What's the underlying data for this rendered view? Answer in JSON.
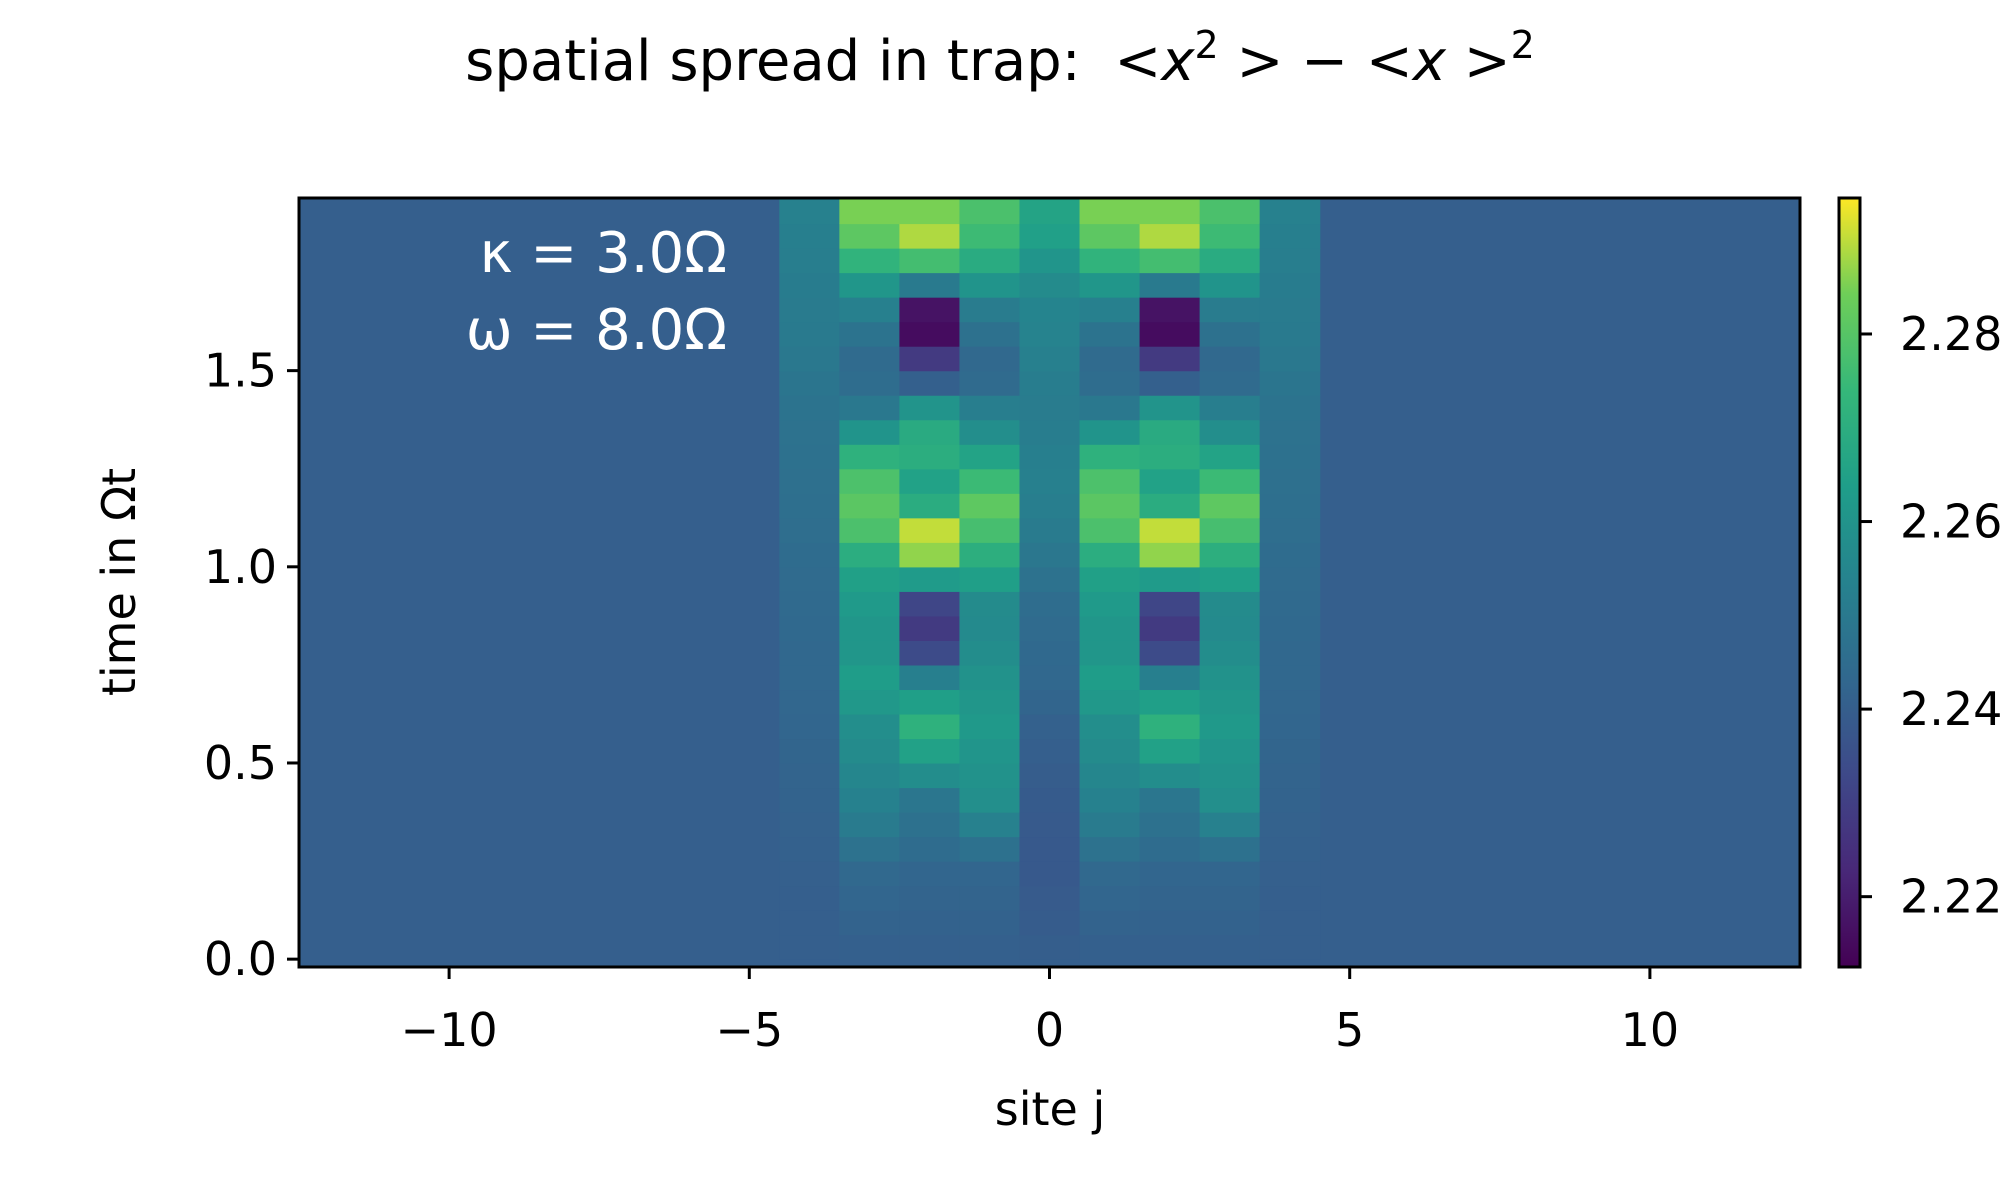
{
  "chart_data": {
    "type": "heatmap",
    "title": {
      "prefix": "spatial spread in trap:",
      "math": "<x^2> - <x>^2"
    },
    "xlabel": "site j",
    "ylabel": "time in Ωt",
    "xlim": [
      -12.5,
      12.5
    ],
    "ylim": [
      -0.02,
      1.94
    ],
    "xticks": [
      -10,
      -5,
      0,
      5,
      10
    ],
    "xtick_labels": [
      "−10",
      "−5",
      "0",
      "5",
      "10"
    ],
    "yticks": [
      0.0,
      0.5,
      1.0,
      1.5
    ],
    "ytick_labels": [
      "0.0",
      "0.5",
      "1.0",
      "1.5"
    ],
    "colorbar": {
      "colormap": "viridis",
      "range": [
        2.2125,
        2.2945
      ],
      "ticks": [
        2.22,
        2.24,
        2.26,
        2.28
      ],
      "tick_labels": [
        "2.22",
        "2.24",
        "2.26",
        "2.28"
      ]
    },
    "annotations": [
      "κ = 3.0Ω",
      "ω = 8.0Ω"
    ],
    "baseline_value": 2.2403,
    "sites": [
      -4,
      -3,
      -2,
      -1,
      0,
      1,
      2,
      3,
      4
    ],
    "time_step": 0.0625,
    "time_knots": [
      0.0,
      0.25,
      0.3,
      0.4,
      0.5,
      0.6,
      0.7,
      0.8,
      0.9,
      1.0,
      1.05,
      1.1,
      1.15,
      1.25,
      1.3,
      1.4,
      1.45,
      1.5,
      1.55,
      1.6,
      1.65,
      1.7,
      1.75,
      1.8,
      1.85,
      1.9
    ],
    "site_knots": [
      {
        "site": -4,
        "values": [
          2.2403,
          2.2405,
          2.241,
          2.2415,
          2.242,
          2.2425,
          2.243,
          2.2435,
          2.244,
          2.2445,
          2.245,
          2.2455,
          2.246,
          2.2465,
          2.247,
          2.2475,
          2.248,
          2.249,
          2.25,
          2.2505,
          2.2505,
          2.251,
          2.2515,
          2.252,
          2.2525,
          2.253
        ]
      },
      {
        "site": -3,
        "values": [
          2.2403,
          2.244,
          2.249,
          2.253,
          2.256,
          2.258,
          2.264,
          2.26,
          2.262,
          2.266,
          2.272,
          2.279,
          2.281,
          2.277,
          2.268,
          2.25,
          2.246,
          2.244,
          2.245,
          2.248,
          2.252,
          2.258,
          2.266,
          2.276,
          2.282,
          2.285
        ]
      },
      {
        "site": -2,
        "values": [
          2.2403,
          2.243,
          2.246,
          2.248,
          2.262,
          2.272,
          2.258,
          2.228,
          2.229,
          2.278,
          2.292,
          2.29,
          2.27,
          2.263,
          2.274,
          2.262,
          2.246,
          2.232,
          2.226,
          2.214,
          2.213,
          2.246,
          2.258,
          2.288,
          2.289,
          2.285
        ]
      },
      {
        "site": -1,
        "values": [
          2.2403,
          2.243,
          2.249,
          2.258,
          2.26,
          2.262,
          2.26,
          2.257,
          2.256,
          2.268,
          2.272,
          2.278,
          2.282,
          2.272,
          2.262,
          2.253,
          2.245,
          2.243,
          2.244,
          2.247,
          2.25,
          2.258,
          2.264,
          2.272,
          2.276,
          2.278
        ]
      },
      {
        "site": 0,
        "values": [
          2.2403,
          2.238,
          2.2385,
          2.239,
          2.24,
          2.241,
          2.243,
          2.244,
          2.245,
          2.248,
          2.25,
          2.251,
          2.252,
          2.253,
          2.252,
          2.251,
          2.251,
          2.252,
          2.253,
          2.254,
          2.254,
          2.256,
          2.258,
          2.262,
          2.265,
          2.266
        ]
      },
      {
        "site": 1,
        "values": [
          2.2403,
          2.244,
          2.249,
          2.253,
          2.256,
          2.258,
          2.264,
          2.26,
          2.262,
          2.266,
          2.272,
          2.279,
          2.281,
          2.277,
          2.268,
          2.25,
          2.246,
          2.244,
          2.245,
          2.248,
          2.252,
          2.258,
          2.266,
          2.276,
          2.282,
          2.285
        ]
      },
      {
        "site": 2,
        "values": [
          2.2403,
          2.243,
          2.246,
          2.248,
          2.262,
          2.272,
          2.258,
          2.228,
          2.229,
          2.278,
          2.292,
          2.29,
          2.27,
          2.263,
          2.274,
          2.262,
          2.246,
          2.232,
          2.226,
          2.214,
          2.213,
          2.246,
          2.258,
          2.288,
          2.289,
          2.285
        ]
      },
      {
        "site": 3,
        "values": [
          2.2403,
          2.243,
          2.249,
          2.258,
          2.26,
          2.262,
          2.26,
          2.257,
          2.256,
          2.268,
          2.272,
          2.278,
          2.282,
          2.272,
          2.262,
          2.253,
          2.245,
          2.243,
          2.244,
          2.247,
          2.25,
          2.258,
          2.264,
          2.272,
          2.276,
          2.278
        ]
      },
      {
        "site": 4,
        "values": [
          2.2403,
          2.2405,
          2.241,
          2.2415,
          2.242,
          2.2425,
          2.243,
          2.2435,
          2.244,
          2.2445,
          2.245,
          2.2455,
          2.246,
          2.2465,
          2.247,
          2.2475,
          2.248,
          2.249,
          2.25,
          2.2505,
          2.2505,
          2.251,
          2.2515,
          2.252,
          2.2525,
          2.253
        ]
      }
    ]
  }
}
